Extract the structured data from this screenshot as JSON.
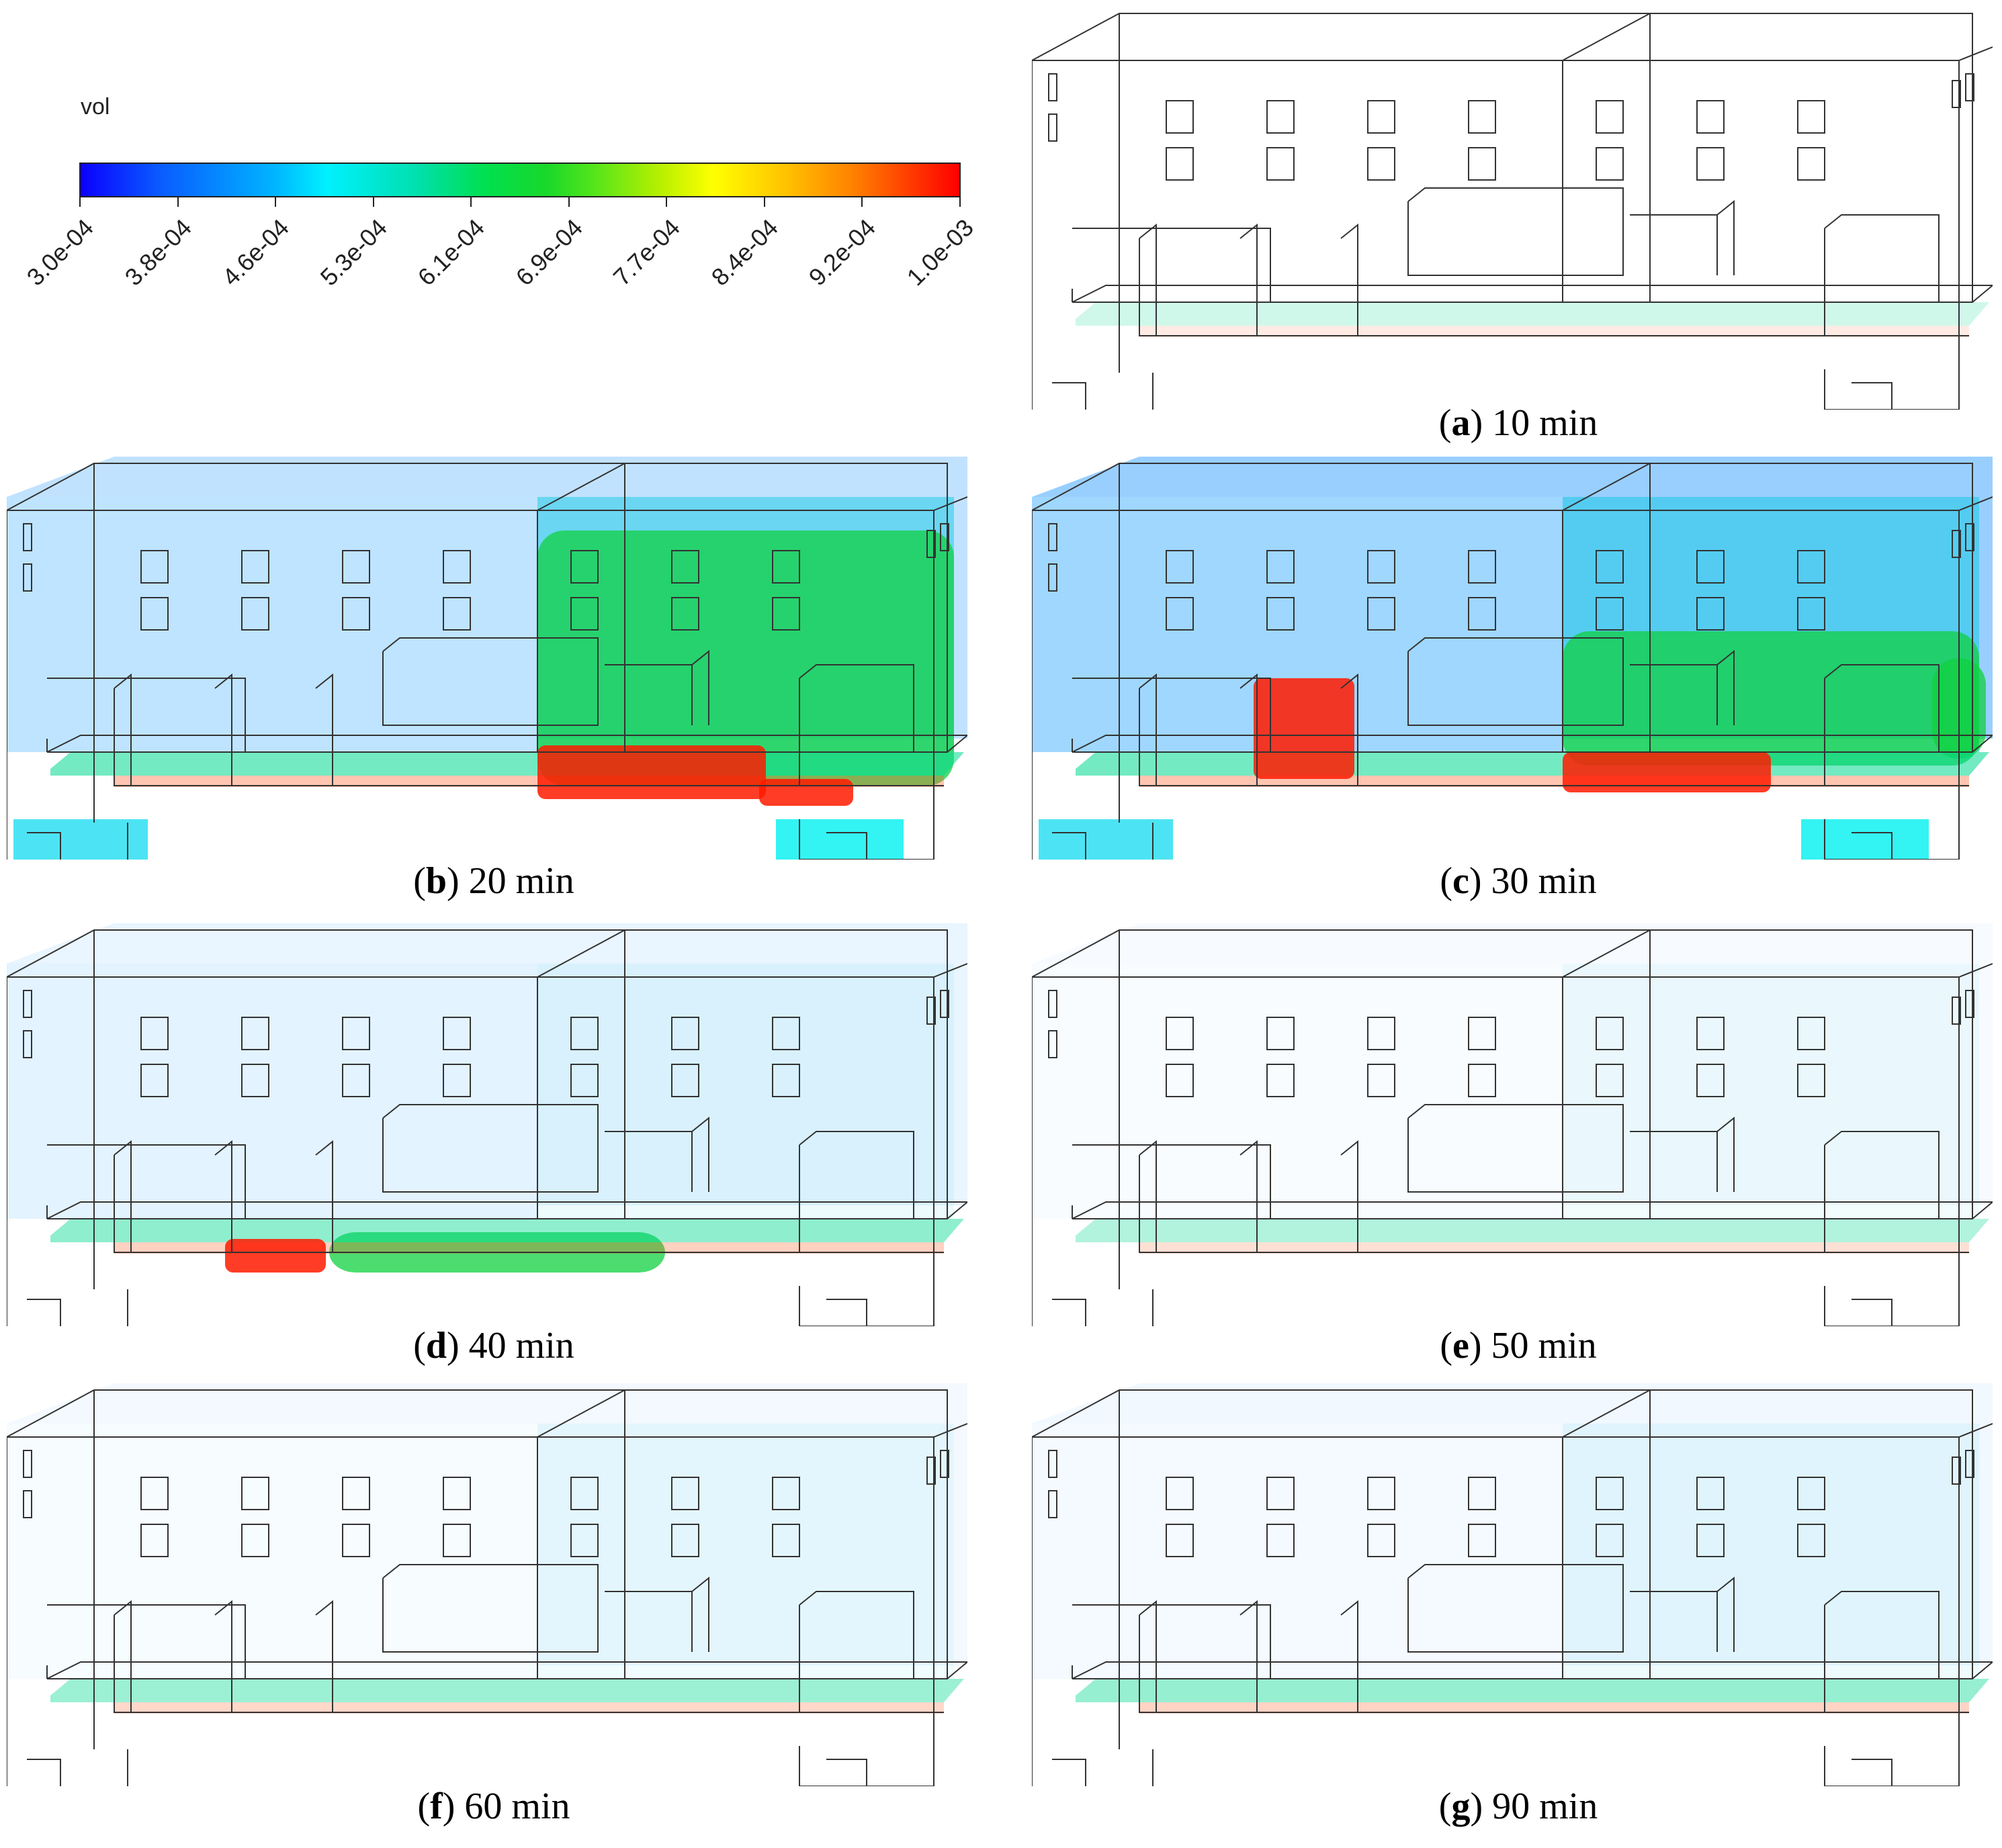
{
  "colorbar": {
    "title": "vol",
    "ticks": [
      "3.0e-04",
      "3.8e-04",
      "4.6e-04",
      "5.3e-04",
      "6.1e-04",
      "6.9e-04",
      "7.7e-04",
      "8.4e-04",
      "9.2e-04",
      "1.0e-03"
    ],
    "colors": [
      "#0a00ff",
      "#00b4ff",
      "#00f0ff",
      "#00e050",
      "#ffff00",
      "#ff8000",
      "#ff0000"
    ]
  },
  "panels": [
    {
      "letter": "a",
      "time": "10 min"
    },
    {
      "letter": "b",
      "time": "20 min"
    },
    {
      "letter": "c",
      "time": "30 min"
    },
    {
      "letter": "d",
      "time": "40 min"
    },
    {
      "letter": "e",
      "time": "50 min"
    },
    {
      "letter": "f",
      "time": "60 min"
    },
    {
      "letter": "g",
      "time": "90 min"
    }
  ]
}
